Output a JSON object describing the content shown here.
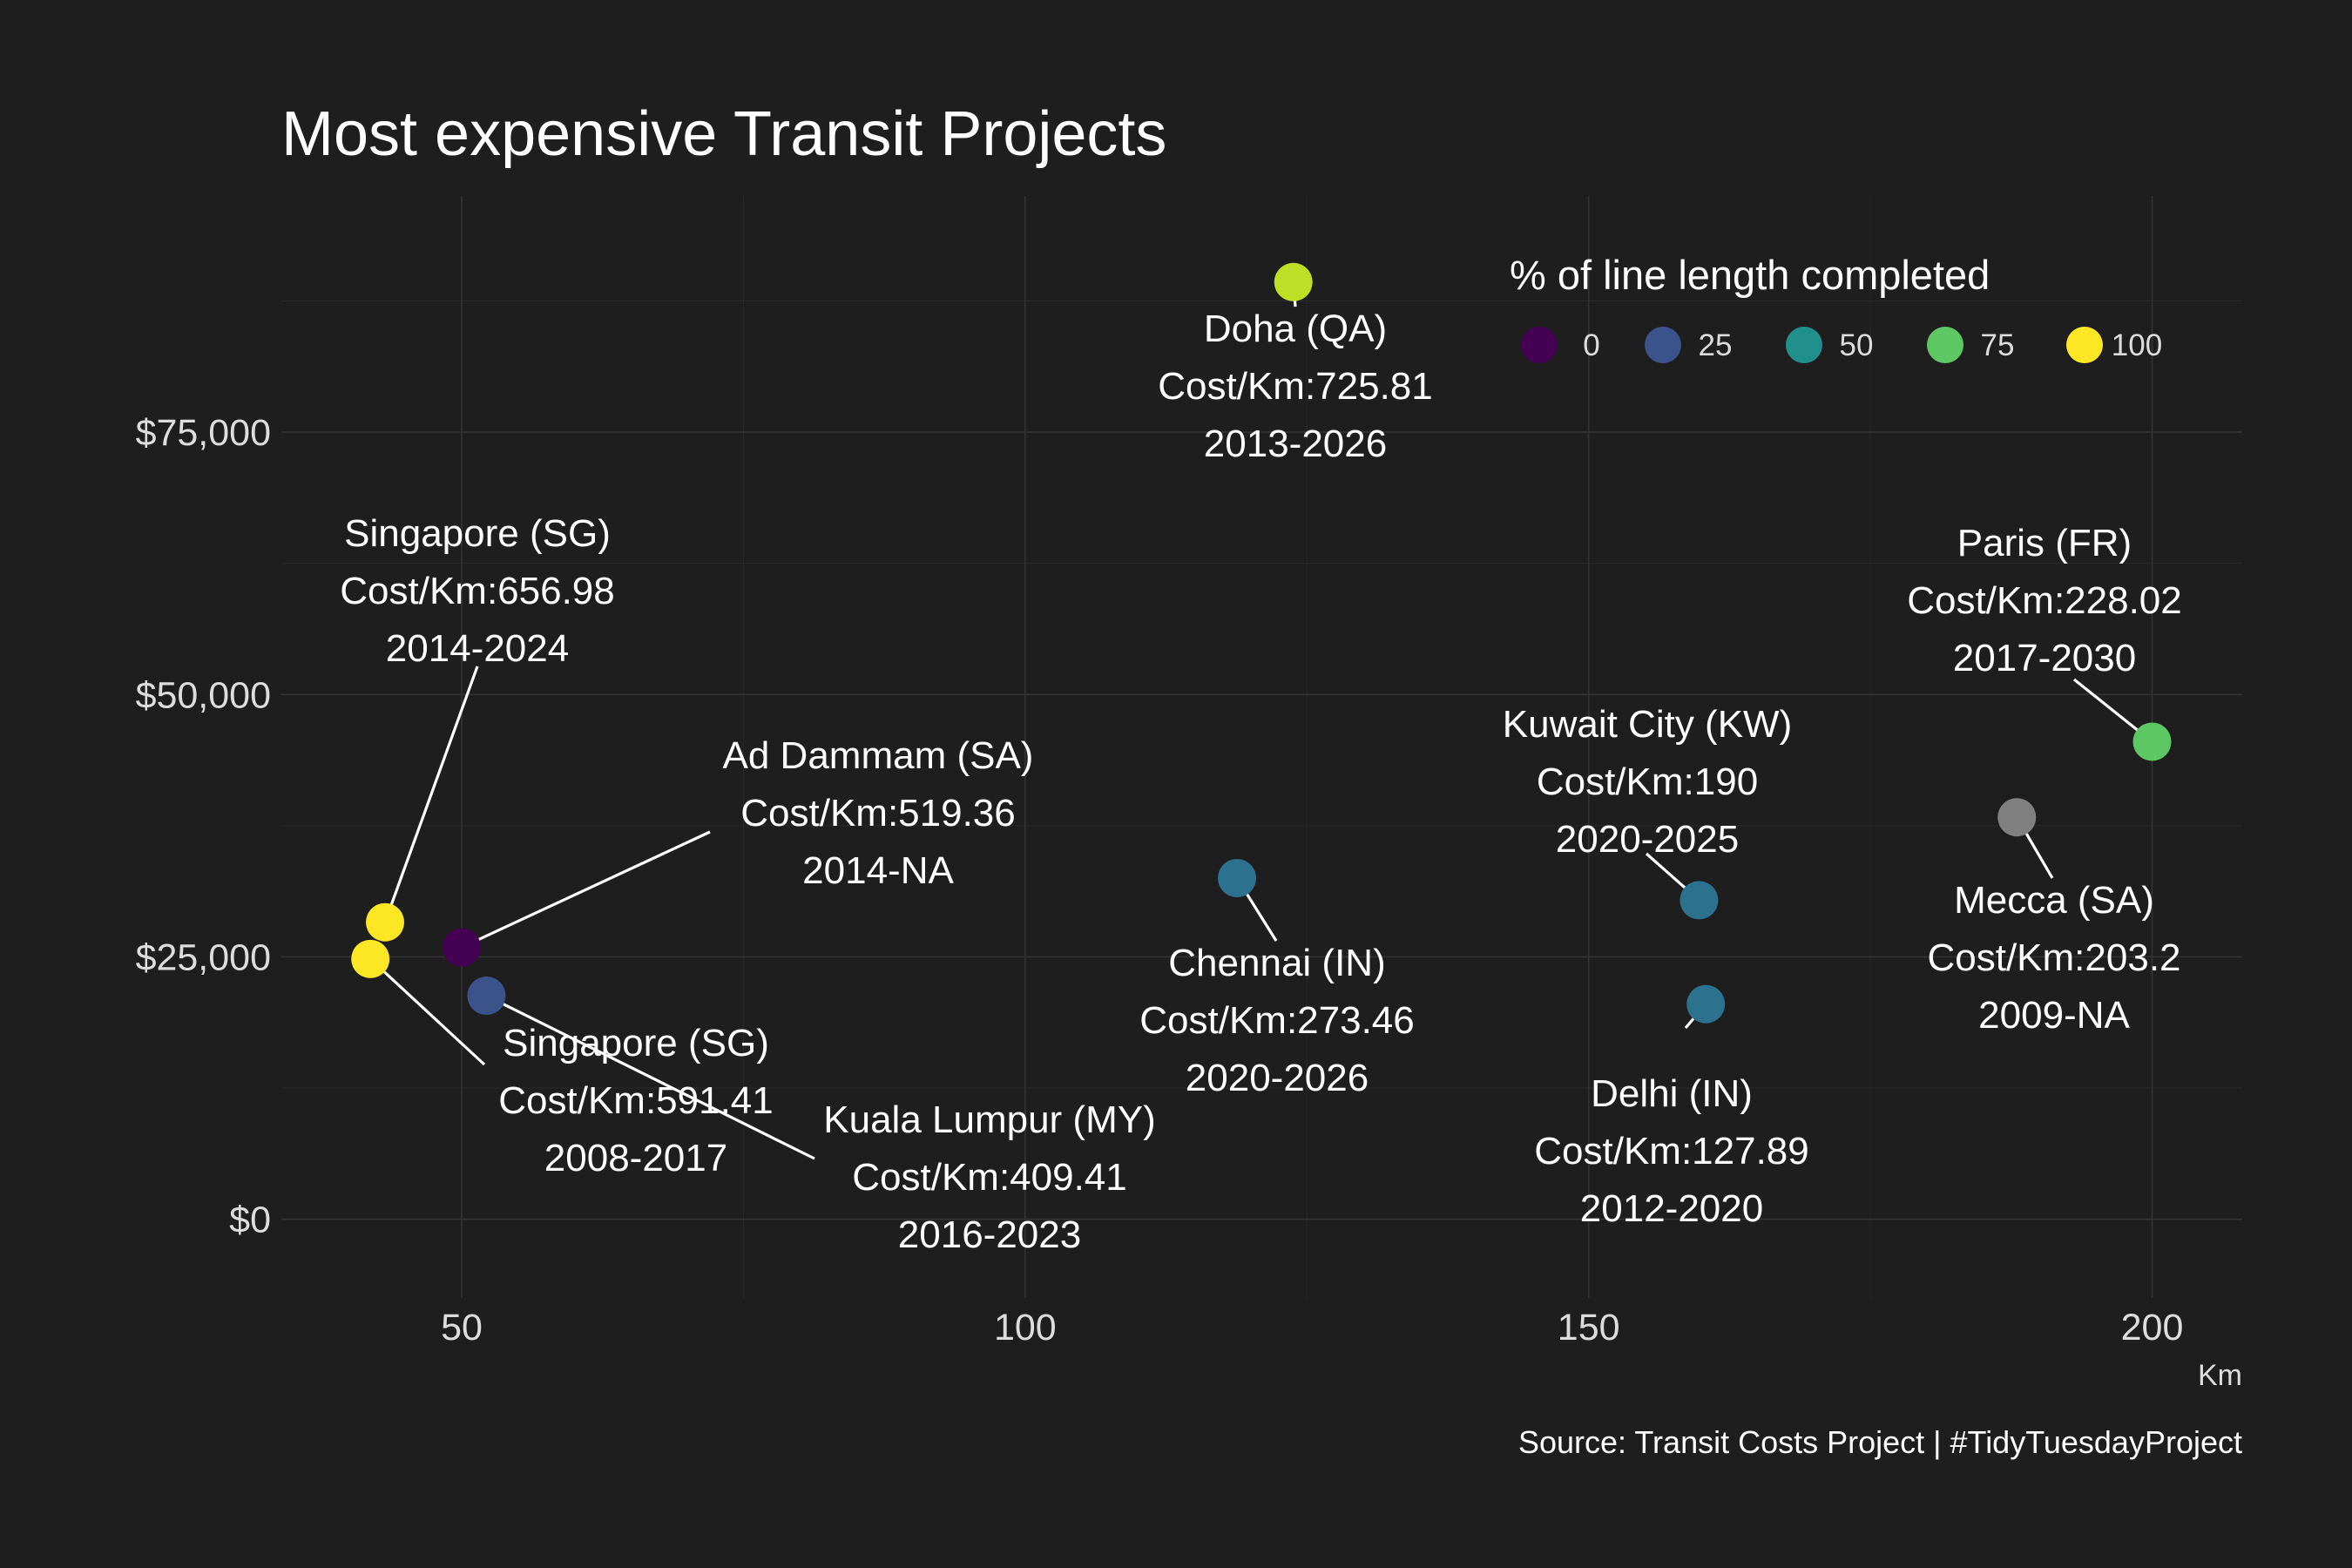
{
  "chart_data": {
    "type": "scatter",
    "title": "Most expensive Transit Projects",
    "xlabel": "Km",
    "ylabel": "",
    "caption": "Source: Transit Costs Project | #TidyTuesdayProject",
    "xlim": [
      34,
      208
    ],
    "ylim": [
      -7500,
      97500
    ],
    "x_ticks": [
      50,
      100,
      150,
      200
    ],
    "y_ticks": [
      0,
      25000,
      50000,
      75000
    ],
    "y_tick_labels": [
      "$0",
      "$25,000",
      "$50,000",
      "$75,000"
    ],
    "grid": true,
    "legend": {
      "title": "% of line length completed",
      "position": "top-right",
      "items": [
        {
          "label": "0",
          "value": 0,
          "color": "#440154"
        },
        {
          "label": "25",
          "value": 25,
          "color": "#3b528b"
        },
        {
          "label": "50",
          "value": 50,
          "color": "#21908c"
        },
        {
          "label": "75",
          "value": 75,
          "color": "#5dc863"
        },
        {
          "label": "100",
          "value": 100,
          "color": "#fde725"
        }
      ]
    },
    "points": [
      {
        "city": "Doha (QA)",
        "cost_label": "Cost/Km:725.81",
        "years": "2013-2026",
        "x": 123.8,
        "y": 89300,
        "completed": 90,
        "color": "#bddf26"
      },
      {
        "city": "Singapore (SG)",
        "cost_label": "Cost/Km:656.98",
        "years": "2014-2024",
        "x": 43.2,
        "y": 28300,
        "completed": 100,
        "color": "#fde725"
      },
      {
        "city": "Ad Dammam (SA)",
        "cost_label": "Cost/Km:519.36",
        "years": "2014-NA",
        "x": 50.0,
        "y": 25900,
        "completed": 0,
        "color": "#440154"
      },
      {
        "city": "Singapore (SG)",
        "cost_label": "Cost/Km:591.41",
        "years": "2008-2017",
        "x": 41.9,
        "y": 24800,
        "completed": 100,
        "color": "#fde725"
      },
      {
        "city": "Kuala Lumpur (MY)",
        "cost_label": "Cost/Km:409.41",
        "years": "2016-2023",
        "x": 52.2,
        "y": 21300,
        "completed": 25,
        "color": "#3b528b"
      },
      {
        "city": "Chennai (IN)",
        "cost_label": "Cost/Km:273.46",
        "years": "2020-2026",
        "x": 118.8,
        "y": 32500,
        "completed": 40,
        "color": "#2c728e"
      },
      {
        "city": "Kuwait City (KW)",
        "cost_label": "Cost/Km:190",
        "years": "2020-2025",
        "x": 159.8,
        "y": 30400,
        "completed": 40,
        "color": "#2c728e"
      },
      {
        "city": "Delhi (IN)",
        "cost_label": "Cost/Km:127.89",
        "years": "2012-2020",
        "x": 160.4,
        "y": 20500,
        "completed": 40,
        "color": "#2c728e"
      },
      {
        "city": "Paris (FR)",
        "cost_label": "Cost/Km:228.02",
        "years": "2017-2030",
        "x": 200.0,
        "y": 45500,
        "completed": 75,
        "color": "#5dc863"
      },
      {
        "city": "Mecca (SA)",
        "cost_label": "Cost/Km:203.2",
        "years": "2009-NA",
        "x": 188.0,
        "y": 38300,
        "completed": null,
        "color": "#808080"
      }
    ]
  }
}
